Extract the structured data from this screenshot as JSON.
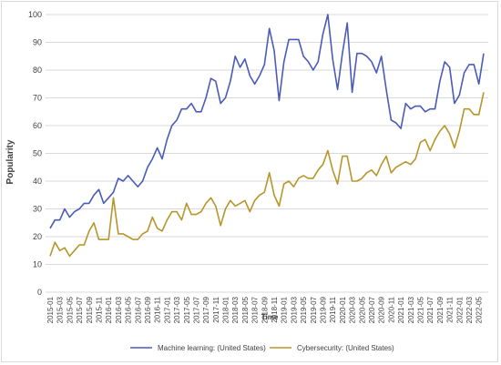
{
  "chart_data": {
    "type": "line",
    "title": "",
    "xlabel": "Time",
    "ylabel": "Popularity",
    "ylim": [
      0,
      100
    ],
    "yticks": [
      0,
      10,
      20,
      30,
      40,
      50,
      60,
      70,
      80,
      90,
      100
    ],
    "grid": "horizontal",
    "legend_position": "bottom",
    "x": [
      "2015-01",
      "2015-02",
      "2015-03",
      "2015-04",
      "2015-05",
      "2015-06",
      "2015-07",
      "2015-08",
      "2015-09",
      "2015-10",
      "2015-11",
      "2015-12",
      "2016-01",
      "2016-02",
      "2016-03",
      "2016-04",
      "2016-05",
      "2016-06",
      "2016-07",
      "2016-08",
      "2016-09",
      "2016-10",
      "2016-11",
      "2016-12",
      "2017-01",
      "2017-02",
      "2017-03",
      "2017-04",
      "2017-05",
      "2017-06",
      "2017-07",
      "2017-08",
      "2017-09",
      "2017-10",
      "2017-11",
      "2017-12",
      "2018-01",
      "2018-02",
      "2018-03",
      "2018-04",
      "2018-05",
      "2018-06",
      "2018-07",
      "2018-08",
      "2018-09",
      "2018-10",
      "2018-11",
      "2018-12",
      "2019-01",
      "2019-02",
      "2019-03",
      "2019-04",
      "2019-05",
      "2019-06",
      "2019-07",
      "2019-08",
      "2019-09",
      "2019-10",
      "2019-11",
      "2019-12",
      "2020-01",
      "2020-02",
      "2020-03",
      "2020-04",
      "2020-05",
      "2020-06",
      "2020-07",
      "2020-08",
      "2020-09",
      "2020-10",
      "2020-11",
      "2020-12",
      "2021-01",
      "2021-02",
      "2021-03",
      "2021-04",
      "2021-05",
      "2021-06",
      "2021-07",
      "2021-08",
      "2021-09",
      "2021-10",
      "2021-11",
      "2021-12",
      "2022-01",
      "2022-02",
      "2022-03",
      "2022-04",
      "2022-05",
      "2022-06"
    ],
    "x_tick_labels": [
      "2015-01",
      "2015-03",
      "2015-05",
      "2015-07",
      "2015-09",
      "2015-11",
      "2016-01",
      "2016-03",
      "2016-05",
      "2016-07",
      "2016-09",
      "2016-11",
      "2017-01",
      "2017-03",
      "2017-05",
      "2017-07",
      "2017-09",
      "2017-11",
      "2018-01",
      "2018-03",
      "2018-05",
      "2018-07",
      "2018-09",
      "2018-11",
      "2019-01",
      "2019-03",
      "2019-05",
      "2019-07",
      "2019-09",
      "2019-11",
      "2020-01",
      "2020-03",
      "2020-05",
      "2020-07",
      "2020-09",
      "2020-11",
      "2021-01",
      "2021-03",
      "2021-05",
      "2021-07",
      "2021-09",
      "2021-11",
      "2022-01",
      "2022-03",
      "2022-05"
    ],
    "series": [
      {
        "name": "Machine learning: (United States)",
        "color": "#4a5bb8",
        "values": [
          23,
          26,
          26,
          30,
          27,
          29,
          30,
          32,
          32,
          35,
          37,
          32,
          34,
          36,
          41,
          40,
          42,
          40,
          38,
          40,
          45,
          48,
          52,
          48,
          55,
          60,
          62,
          66,
          66,
          68,
          65,
          65,
          70,
          77,
          76,
          68,
          70,
          76,
          85,
          81,
          84,
          78,
          75,
          78,
          82,
          95,
          87,
          69,
          83,
          91,
          91,
          91,
          85,
          83,
          80,
          83,
          93,
          100,
          84,
          73,
          86,
          97,
          72,
          86,
          86,
          85,
          83,
          79,
          85,
          73,
          62,
          61,
          59,
          68,
          66,
          67,
          67,
          65,
          66,
          66,
          76,
          83,
          81,
          68,
          71,
          79,
          82,
          82,
          75,
          86
        ]
      },
      {
        "name": "Cybersecurity: (United States)",
        "color": "#b8952a",
        "values": [
          13,
          18,
          15,
          16,
          13,
          15,
          17,
          17,
          22,
          25,
          19,
          19,
          19,
          34,
          21,
          21,
          20,
          19,
          19,
          21,
          22,
          27,
          23,
          22,
          26,
          29,
          29,
          26,
          32,
          28,
          28,
          29,
          32,
          34,
          31,
          24,
          30,
          33,
          31,
          32,
          33,
          29,
          33,
          35,
          36,
          43,
          35,
          31,
          39,
          40,
          38,
          41,
          42,
          41,
          41,
          44,
          46,
          51,
          44,
          39,
          49,
          49,
          40,
          40,
          41,
          43,
          44,
          42,
          46,
          49,
          43,
          45,
          46,
          47,
          46,
          48,
          54,
          55,
          51,
          55,
          58,
          60,
          57,
          52,
          58,
          66,
          66,
          64,
          64,
          72
        ]
      }
    ]
  }
}
